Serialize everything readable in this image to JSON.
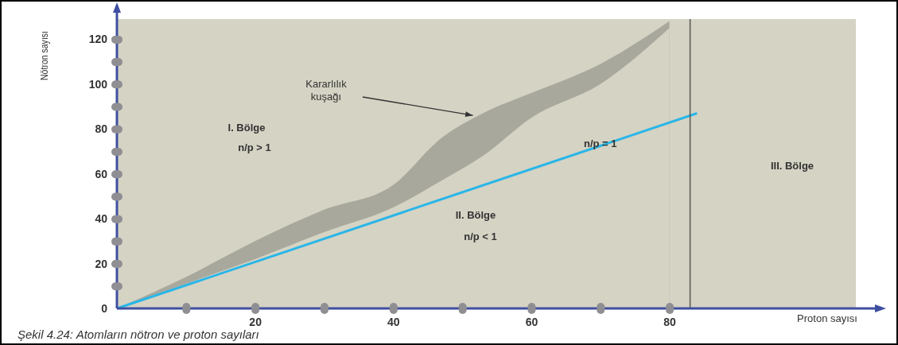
{
  "chart_data": {
    "type": "area",
    "xlabel": "Proton sayısı",
    "ylabel": "Nötron sayısı",
    "xlim": [
      0,
      107
    ],
    "ylim": [
      0,
      129
    ],
    "xticks": [
      {
        "value": 0,
        "label": null
      },
      {
        "value": 10,
        "label": null
      },
      20,
      {
        "value": 30,
        "label": null
      },
      40,
      {
        "value": 50,
        "label": null
      },
      60,
      {
        "value": 70,
        "label": null
      },
      80
    ],
    "yticks": [
      0,
      {
        "value": 10,
        "label": null
      },
      20,
      {
        "value": 30,
        "label": null
      },
      40,
      {
        "value": 50,
        "label": null
      },
      60,
      {
        "value": 70,
        "label": null
      },
      80,
      {
        "value": 90,
        "label": null
      },
      100,
      {
        "value": 110,
        "label": null
      },
      120
    ],
    "series": [
      {
        "color": "#a9a89c",
        "x": [
          0,
          10,
          20,
          30,
          40,
          47,
          53,
          60,
          70,
          80
        ],
        "values": [
          0,
          14,
          30,
          44,
          55,
          76,
          87,
          96,
          109,
          128
        ]
      },
      {
        "color": "#d5d3c4",
        "x": [
          0,
          10,
          20,
          30,
          40,
          47,
          53,
          60,
          70,
          80
        ],
        "values": [
          0,
          11,
          22,
          34,
          45,
          57,
          68,
          85,
          100,
          125
        ]
      },
      {
        "type": "line",
        "color": "#29b6e8",
        "x": [
          0,
          84
        ],
        "values": [
          0,
          87
        ]
      }
    ],
    "ref_lines": [
      {
        "axis": "x",
        "value": 83,
        "color": "#555555"
      }
    ],
    "annotations": [
      "Kararlılık kuşağı",
      "I. Bölge",
      "n/p > 1",
      "II. Bölge",
      "n/p < 1",
      {
        "text": "n/p = 1",
        "x": 70,
        "y": 72
      },
      "III. Bölge",
      "Şekil 4.24: Atomların nötron ve proton sayıları"
    ]
  }
}
